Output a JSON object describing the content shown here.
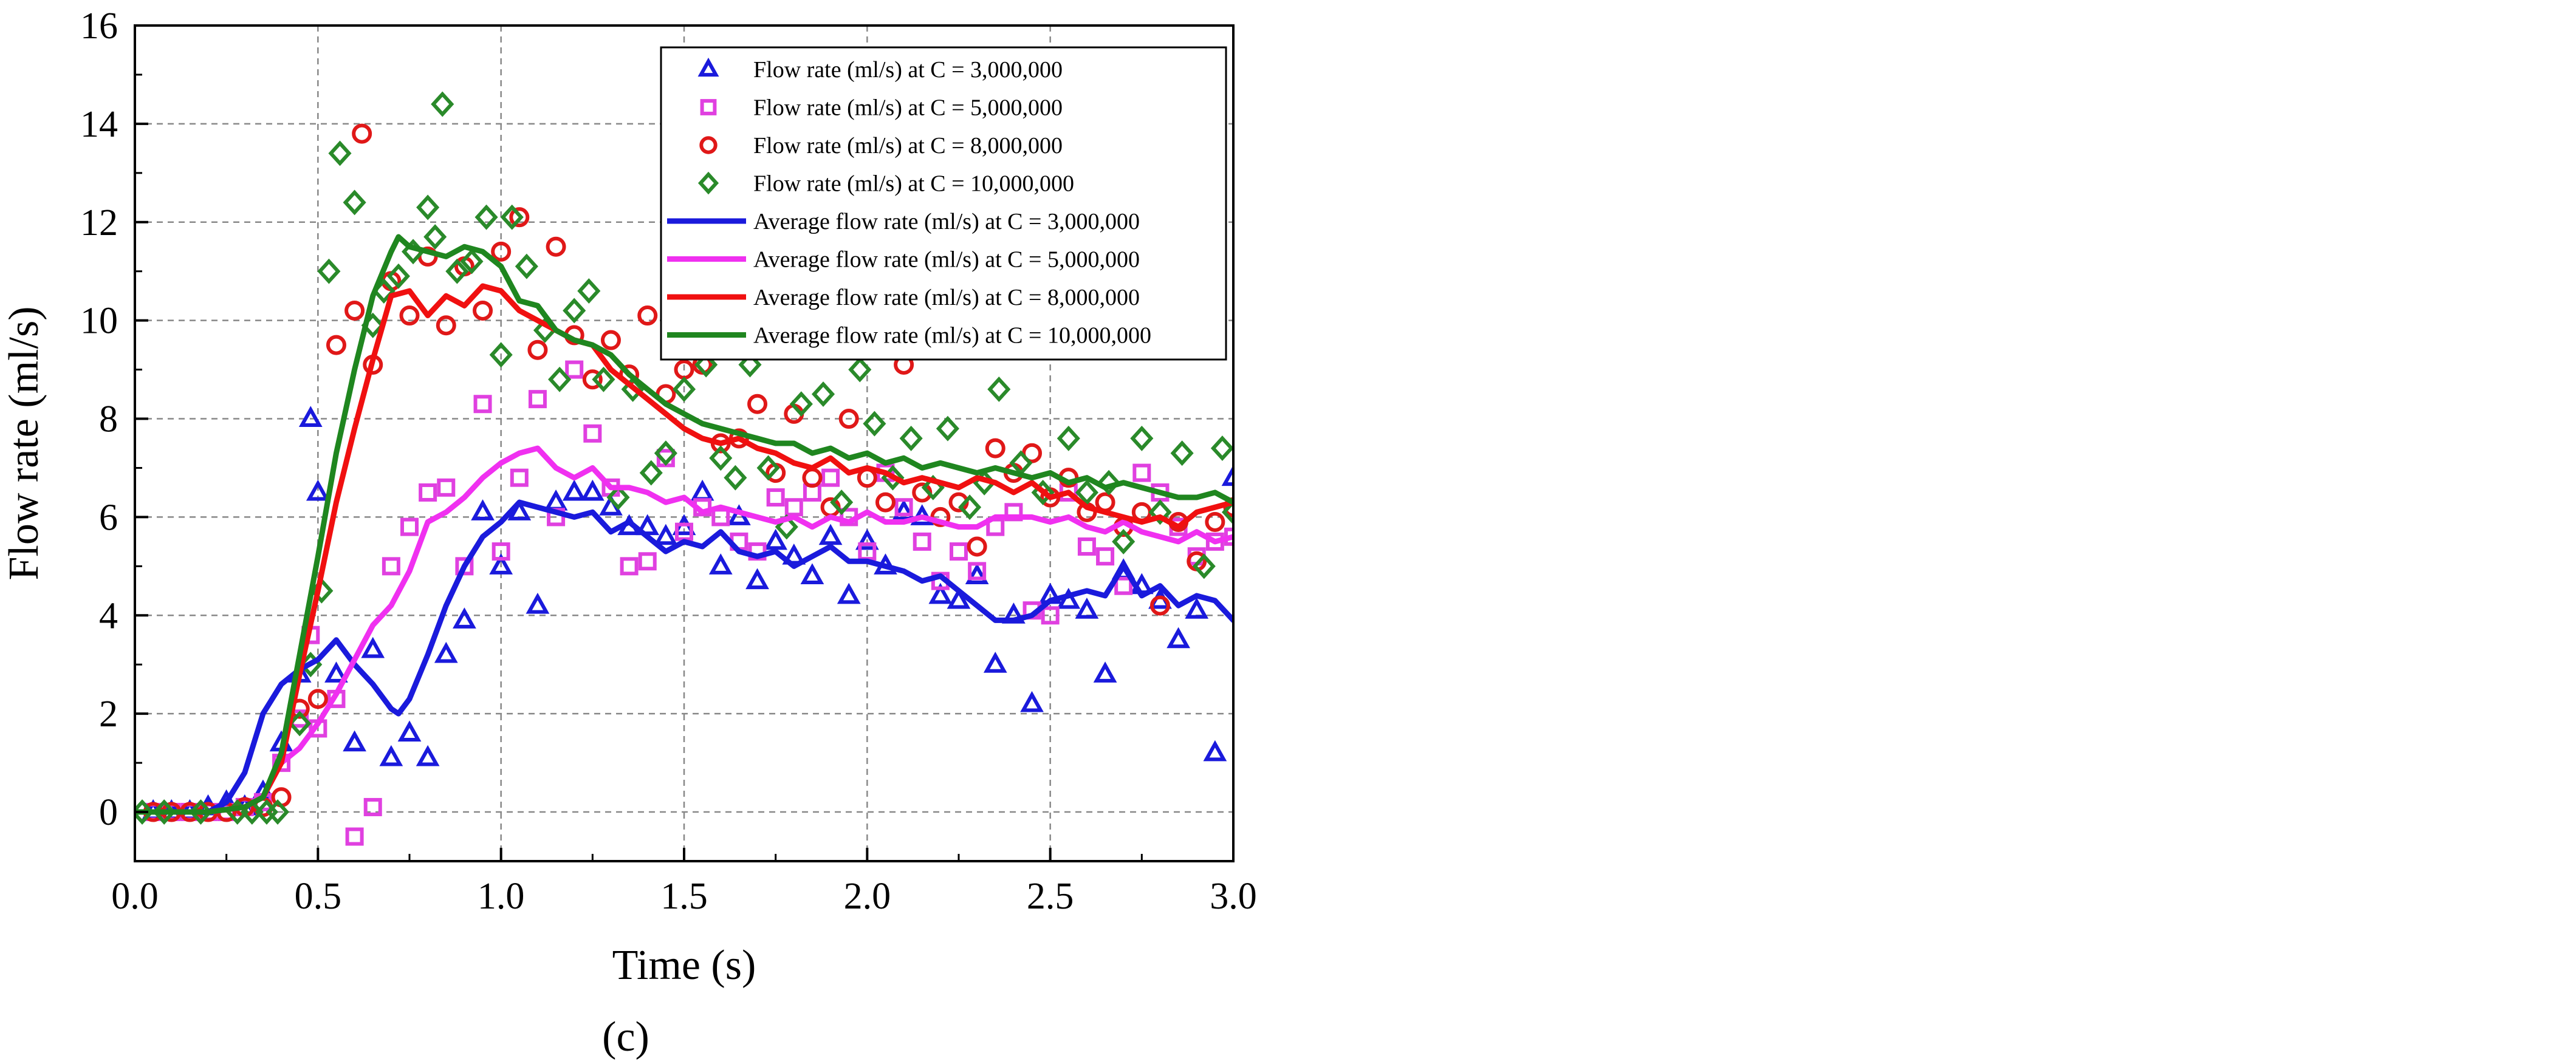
{
  "chart_data": {
    "type": "line",
    "panel_label": "(c)",
    "xlabel": "Time (s)",
    "ylabel": "Flow rate (ml/s)",
    "xlim": [
      0,
      3
    ],
    "ylim": [
      -1,
      16
    ],
    "xticks": [
      0,
      0.5,
      1,
      1.5,
      2,
      2.5,
      3
    ],
    "xtick_labels": [
      "0.0",
      "0.5",
      "1.0",
      "1.5",
      "2.0",
      "2.5",
      "3.0"
    ],
    "yticks": [
      0,
      2,
      4,
      6,
      8,
      10,
      12,
      14,
      16
    ],
    "ytick_labels": [
      "0",
      "2",
      "4",
      "6",
      "8",
      "10",
      "12",
      "14",
      "16"
    ],
    "grid": true,
    "legend_position": "top-right",
    "series": [
      {
        "name": "Flow rate (ml/s) at C = 3,000,000",
        "kind": "scatter",
        "marker": "triangle",
        "color": "#1a1adc",
        "x": [
          0.05,
          0.1,
          0.15,
          0.2,
          0.25,
          0.3,
          0.35,
          0.4,
          0.45,
          0.48,
          0.5,
          0.55,
          0.6,
          0.65,
          0.7,
          0.75,
          0.8,
          0.85,
          0.9,
          0.95,
          1.0,
          1.05,
          1.1,
          1.15,
          1.2,
          1.25,
          1.3,
          1.35,
          1.4,
          1.45,
          1.5,
          1.55,
          1.6,
          1.65,
          1.7,
          1.75,
          1.8,
          1.85,
          1.9,
          1.95,
          2.0,
          2.05,
          2.1,
          2.15,
          2.2,
          2.25,
          2.3,
          2.35,
          2.4,
          2.45,
          2.5,
          2.55,
          2.6,
          2.65,
          2.7,
          2.75,
          2.8,
          2.85,
          2.9,
          2.95,
          3.0
        ],
        "y": [
          0.0,
          0.0,
          0.0,
          0.1,
          0.2,
          0.1,
          0.4,
          1.4,
          2.8,
          8.0,
          6.5,
          2.8,
          1.4,
          3.3,
          1.1,
          1.6,
          1.1,
          3.2,
          3.9,
          6.1,
          5.0,
          6.1,
          4.2,
          6.3,
          6.5,
          6.5,
          6.2,
          5.8,
          5.8,
          5.6,
          5.8,
          6.5,
          5.0,
          6.0,
          4.7,
          5.5,
          5.2,
          4.8,
          5.6,
          4.4,
          5.5,
          5.0,
          6.1,
          6.0,
          4.4,
          4.3,
          4.8,
          3.0,
          4.0,
          2.2,
          4.4,
          4.3,
          4.1,
          2.8,
          4.9,
          4.6,
          4.3,
          3.5,
          4.1,
          1.2,
          6.8
        ]
      },
      {
        "name": "Flow rate (ml/s) at C = 5,000,000",
        "kind": "scatter",
        "marker": "square",
        "color": "#e040e0",
        "x": [
          0.05,
          0.1,
          0.15,
          0.2,
          0.25,
          0.3,
          0.35,
          0.4,
          0.45,
          0.48,
          0.5,
          0.55,
          0.6,
          0.65,
          0.7,
          0.75,
          0.8,
          0.85,
          0.9,
          0.95,
          1.0,
          1.05,
          1.1,
          1.15,
          1.2,
          1.25,
          1.3,
          1.35,
          1.4,
          1.45,
          1.5,
          1.55,
          1.6,
          1.65,
          1.7,
          1.75,
          1.8,
          1.85,
          1.9,
          1.95,
          2.0,
          2.05,
          2.1,
          2.15,
          2.2,
          2.25,
          2.3,
          2.35,
          2.4,
          2.45,
          2.5,
          2.55,
          2.6,
          2.65,
          2.7,
          2.75,
          2.8,
          2.85,
          2.9,
          2.95,
          3.0
        ],
        "y": [
          0.0,
          0.0,
          0.0,
          0.0,
          0.0,
          0.1,
          0.2,
          1.0,
          1.9,
          3.6,
          1.7,
          2.3,
          -0.5,
          0.1,
          5.0,
          5.8,
          6.5,
          6.6,
          5.0,
          8.3,
          5.3,
          6.8,
          8.4,
          6.0,
          9.0,
          7.7,
          6.6,
          5.0,
          5.1,
          7.2,
          5.7,
          6.2,
          6.0,
          5.5,
          5.3,
          6.4,
          6.2,
          6.5,
          6.8,
          6.0,
          5.3,
          6.9,
          6.2,
          5.5,
          4.7,
          5.3,
          4.9,
          5.8,
          6.1,
          4.1,
          4.0,
          6.5,
          5.4,
          5.2,
          4.6,
          6.9,
          6.5,
          5.8,
          5.2,
          5.5,
          5.6
        ]
      },
      {
        "name": "Flow rate (ml/s) at C = 8,000,000",
        "kind": "scatter",
        "marker": "circle",
        "color": "#e01818",
        "x": [
          0.05,
          0.1,
          0.15,
          0.2,
          0.25,
          0.3,
          0.35,
          0.4,
          0.45,
          0.5,
          0.55,
          0.6,
          0.62,
          0.65,
          0.7,
          0.75,
          0.8,
          0.85,
          0.9,
          0.95,
          1.0,
          1.05,
          1.1,
          1.15,
          1.2,
          1.25,
          1.3,
          1.35,
          1.4,
          1.45,
          1.5,
          1.55,
          1.6,
          1.65,
          1.7,
          1.75,
          1.8,
          1.85,
          1.9,
          1.95,
          2.0,
          2.05,
          2.1,
          2.15,
          2.2,
          2.25,
          2.3,
          2.35,
          2.4,
          2.45,
          2.5,
          2.55,
          2.6,
          2.65,
          2.7,
          2.75,
          2.8,
          2.85,
          2.9,
          2.95,
          3.0
        ],
        "y": [
          0.0,
          0.0,
          0.0,
          0.0,
          0.0,
          0.1,
          0.1,
          0.3,
          2.1,
          2.3,
          9.5,
          10.2,
          13.8,
          9.1,
          10.8,
          10.1,
          11.3,
          9.9,
          11.1,
          10.2,
          11.4,
          12.1,
          9.4,
          11.5,
          9.7,
          8.8,
          9.6,
          8.9,
          10.1,
          8.5,
          9.0,
          9.1,
          7.5,
          7.6,
          8.3,
          6.9,
          8.1,
          6.8,
          6.2,
          8.0,
          6.8,
          6.3,
          9.1,
          6.5,
          6.0,
          6.3,
          5.4,
          7.4,
          6.9,
          7.3,
          6.4,
          6.8,
          6.1,
          6.3,
          5.8,
          6.1,
          4.2,
          5.9,
          5.1,
          5.9,
          6.2
        ]
      },
      {
        "name": "Flow rate (ml/s) at C = 10,000,000",
        "kind": "scatter",
        "marker": "diamond",
        "color": "#2a8a2a",
        "x": [
          0.02,
          0.08,
          0.18,
          0.28,
          0.32,
          0.36,
          0.39,
          0.45,
          0.48,
          0.51,
          0.53,
          0.56,
          0.6,
          0.65,
          0.68,
          0.72,
          0.76,
          0.8,
          0.82,
          0.84,
          0.88,
          0.92,
          0.96,
          1.0,
          1.03,
          1.07,
          1.12,
          1.16,
          1.2,
          1.24,
          1.28,
          1.32,
          1.36,
          1.41,
          1.45,
          1.5,
          1.56,
          1.6,
          1.64,
          1.68,
          1.73,
          1.78,
          1.82,
          1.88,
          1.93,
          1.98,
          2.02,
          2.07,
          2.12,
          2.18,
          2.22,
          2.28,
          2.32,
          2.36,
          2.42,
          2.48,
          2.55,
          2.6,
          2.66,
          2.7,
          2.75,
          2.8,
          2.86,
          2.92,
          2.97,
          3.0
        ],
        "y": [
          0.0,
          0.0,
          0.0,
          0.0,
          0.0,
          0.0,
          0.0,
          1.8,
          3.0,
          4.5,
          11.0,
          13.4,
          12.4,
          9.9,
          10.6,
          10.9,
          11.4,
          12.3,
          11.7,
          14.4,
          11.0,
          11.2,
          12.1,
          9.3,
          12.1,
          11.1,
          9.8,
          8.8,
          10.2,
          10.6,
          8.8,
          6.4,
          8.6,
          6.9,
          7.3,
          8.6,
          9.1,
          7.2,
          6.8,
          9.1,
          7.0,
          5.8,
          8.3,
          8.5,
          6.3,
          9.0,
          7.9,
          6.8,
          7.6,
          6.6,
          7.8,
          6.2,
          6.7,
          8.6,
          7.1,
          6.5,
          7.6,
          6.5,
          6.7,
          5.5,
          7.6,
          6.1,
          7.3,
          5.0,
          7.4,
          6.1
        ]
      },
      {
        "name": "Average flow rate (ml/s) at C = 3,000,000",
        "kind": "line",
        "color": "#1a1adc",
        "x": [
          0.0,
          0.1,
          0.2,
          0.25,
          0.3,
          0.35,
          0.4,
          0.45,
          0.5,
          0.55,
          0.6,
          0.65,
          0.7,
          0.72,
          0.75,
          0.8,
          0.85,
          0.9,
          0.95,
          1.0,
          1.05,
          1.1,
          1.15,
          1.2,
          1.25,
          1.3,
          1.35,
          1.4,
          1.45,
          1.5,
          1.55,
          1.6,
          1.65,
          1.7,
          1.75,
          1.8,
          1.85,
          1.9,
          1.95,
          2.0,
          2.05,
          2.1,
          2.15,
          2.2,
          2.25,
          2.3,
          2.35,
          2.4,
          2.45,
          2.5,
          2.55,
          2.6,
          2.65,
          2.7,
          2.75,
          2.8,
          2.85,
          2.9,
          2.95,
          3.0
        ],
        "y": [
          0.0,
          0.0,
          0.0,
          0.2,
          0.8,
          2.0,
          2.6,
          2.9,
          3.1,
          3.5,
          3.0,
          2.6,
          2.1,
          2.0,
          2.3,
          3.2,
          4.2,
          5.0,
          5.6,
          5.9,
          6.3,
          6.2,
          6.1,
          6.0,
          6.1,
          5.7,
          5.9,
          5.6,
          5.3,
          5.5,
          5.4,
          5.7,
          5.3,
          5.2,
          5.3,
          5.0,
          5.2,
          5.4,
          5.1,
          5.1,
          5.0,
          4.9,
          4.7,
          4.8,
          4.5,
          4.2,
          3.9,
          3.9,
          4.0,
          4.3,
          4.4,
          4.5,
          4.4,
          5.0,
          4.4,
          4.6,
          4.2,
          4.4,
          4.3,
          3.9
        ]
      },
      {
        "name": "Average flow rate (ml/s) at C = 5,000,000",
        "kind": "line",
        "color": "#f030f0",
        "x": [
          0.0,
          0.1,
          0.2,
          0.3,
          0.35,
          0.4,
          0.45,
          0.5,
          0.55,
          0.6,
          0.65,
          0.7,
          0.75,
          0.8,
          0.85,
          0.9,
          0.95,
          1.0,
          1.05,
          1.1,
          1.15,
          1.2,
          1.25,
          1.3,
          1.35,
          1.4,
          1.45,
          1.5,
          1.55,
          1.6,
          1.65,
          1.7,
          1.75,
          1.8,
          1.85,
          1.9,
          1.95,
          2.0,
          2.05,
          2.1,
          2.15,
          2.2,
          2.25,
          2.3,
          2.35,
          2.4,
          2.45,
          2.5,
          2.55,
          2.6,
          2.65,
          2.7,
          2.75,
          2.8,
          2.85,
          2.9,
          2.95,
          3.0
        ],
        "y": [
          0.0,
          0.0,
          0.0,
          0.1,
          0.3,
          1.0,
          1.3,
          1.8,
          2.4,
          3.1,
          3.8,
          4.2,
          4.9,
          5.9,
          6.1,
          6.4,
          6.8,
          7.1,
          7.3,
          7.4,
          7.0,
          6.8,
          7.0,
          6.6,
          6.6,
          6.5,
          6.3,
          6.4,
          6.1,
          6.2,
          6.1,
          6.0,
          5.9,
          6.0,
          5.8,
          6.0,
          5.9,
          6.1,
          5.9,
          5.9,
          6.0,
          5.9,
          5.8,
          5.8,
          6.0,
          6.0,
          6.0,
          5.9,
          6.0,
          5.8,
          5.7,
          5.9,
          5.7,
          5.6,
          5.5,
          5.7,
          5.5,
          5.6
        ]
      },
      {
        "name": "Average flow rate (ml/s) at C = 8,000,000",
        "kind": "line",
        "color": "#f01010",
        "x": [
          0.0,
          0.1,
          0.2,
          0.3,
          0.35,
          0.4,
          0.45,
          0.5,
          0.55,
          0.6,
          0.65,
          0.7,
          0.75,
          0.8,
          0.85,
          0.9,
          0.95,
          1.0,
          1.05,
          1.1,
          1.15,
          1.2,
          1.25,
          1.3,
          1.35,
          1.4,
          1.45,
          1.5,
          1.55,
          1.6,
          1.65,
          1.7,
          1.75,
          1.8,
          1.85,
          1.9,
          1.95,
          2.0,
          2.05,
          2.1,
          2.15,
          2.2,
          2.25,
          2.3,
          2.35,
          2.4,
          2.45,
          2.5,
          2.55,
          2.6,
          2.65,
          2.7,
          2.75,
          2.8,
          2.85,
          2.9,
          2.95,
          3.0
        ],
        "y": [
          0.0,
          0.0,
          0.0,
          0.1,
          0.3,
          1.0,
          2.8,
          4.5,
          6.3,
          7.8,
          9.2,
          10.5,
          10.6,
          10.1,
          10.5,
          10.3,
          10.7,
          10.6,
          10.2,
          10.0,
          9.8,
          9.6,
          9.5,
          9.0,
          8.7,
          8.4,
          8.1,
          7.8,
          7.6,
          7.5,
          7.6,
          7.4,
          7.3,
          7.1,
          7.0,
          7.2,
          6.9,
          7.0,
          6.9,
          6.7,
          6.8,
          6.7,
          6.6,
          6.8,
          6.7,
          6.5,
          6.7,
          6.4,
          6.5,
          6.2,
          6.1,
          6.0,
          5.9,
          6.0,
          5.8,
          6.1,
          6.2,
          6.3
        ]
      },
      {
        "name": "Average flow rate (ml/s) at C = 10,000,000",
        "kind": "line",
        "color": "#1f861f",
        "x": [
          0.0,
          0.1,
          0.2,
          0.3,
          0.35,
          0.4,
          0.45,
          0.5,
          0.55,
          0.6,
          0.65,
          0.7,
          0.72,
          0.75,
          0.8,
          0.85,
          0.9,
          0.95,
          1.0,
          1.05,
          1.1,
          1.15,
          1.2,
          1.25,
          1.3,
          1.35,
          1.4,
          1.45,
          1.5,
          1.55,
          1.6,
          1.65,
          1.7,
          1.75,
          1.8,
          1.85,
          1.9,
          1.95,
          2.0,
          2.05,
          2.1,
          2.15,
          2.2,
          2.25,
          2.3,
          2.35,
          2.4,
          2.45,
          2.5,
          2.55,
          2.6,
          2.65,
          2.7,
          2.75,
          2.8,
          2.85,
          2.9,
          2.95,
          3.0
        ],
        "y": [
          0.0,
          0.0,
          0.0,
          0.1,
          0.3,
          1.2,
          3.2,
          5.2,
          7.3,
          9.0,
          10.5,
          11.4,
          11.7,
          11.5,
          11.4,
          11.3,
          11.5,
          11.4,
          11.1,
          10.4,
          10.3,
          9.8,
          9.6,
          9.5,
          9.3,
          8.9,
          8.6,
          8.3,
          8.1,
          7.9,
          7.8,
          7.7,
          7.6,
          7.5,
          7.5,
          7.3,
          7.4,
          7.2,
          7.3,
          7.1,
          7.2,
          7.0,
          7.1,
          7.0,
          6.9,
          7.0,
          6.9,
          6.8,
          6.9,
          6.7,
          6.8,
          6.6,
          6.7,
          6.6,
          6.5,
          6.4,
          6.4,
          6.5,
          6.3
        ]
      }
    ]
  }
}
